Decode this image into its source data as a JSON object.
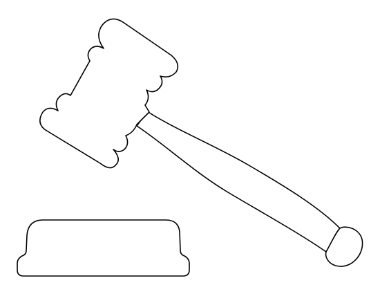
{
  "artwork": {
    "subject": "gavel-and-sound-block",
    "style": "line-art-outline",
    "colors": {
      "stroke": "#000000",
      "fill": "#ffffff",
      "background": "#ffffff"
    }
  }
}
